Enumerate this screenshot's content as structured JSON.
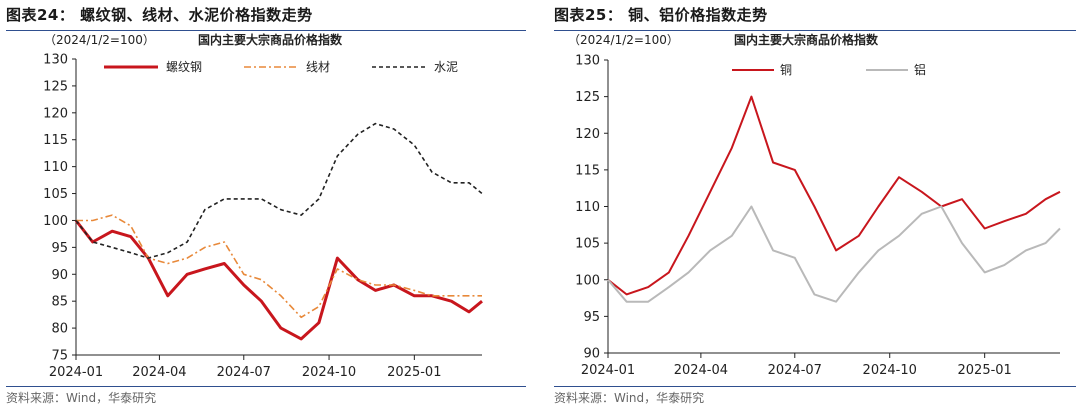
{
  "source_note": "资料来源：Wind，华泰研究",
  "chart_data": [
    {
      "type": "line",
      "figure_title": "图表24： 螺纹钢、线材、水泥价格指数走势",
      "title": "国内主要大宗商品价格指数",
      "base_note": "（2024/1/2=100）",
      "x_dates": [
        "2024-01-02",
        "2024-01-20",
        "2024-02-10",
        "2024-03-01",
        "2024-03-20",
        "2024-04-10",
        "2024-05-01",
        "2024-05-20",
        "2024-06-10",
        "2024-07-01",
        "2024-07-20",
        "2024-08-10",
        "2024-09-01",
        "2024-09-20",
        "2024-10-10",
        "2024-11-01",
        "2024-11-20",
        "2024-12-10",
        "2025-01-01",
        "2025-01-20",
        "2025-02-10",
        "2025-03-01",
        "2025-03-15"
      ],
      "series": [
        {
          "name": "螺纹钢",
          "color": "#c8161d",
          "dash": "none",
          "width": 3,
          "values": [
            100,
            96,
            98,
            97,
            93,
            86,
            90,
            91,
            92,
            88,
            85,
            80,
            78,
            81,
            93,
            89,
            87,
            88,
            86,
            86,
            85,
            83,
            85
          ]
        },
        {
          "name": "线材",
          "color": "#e8893a",
          "dash": "7,3,2,3",
          "width": 1.6,
          "values": [
            100,
            100,
            101,
            99,
            93,
            92,
            93,
            95,
            96,
            90,
            89,
            86,
            82,
            84,
            91,
            89,
            88,
            88,
            87,
            86,
            86,
            86,
            86
          ]
        },
        {
          "name": "水泥",
          "color": "#222222",
          "dash": "4,3",
          "width": 1.6,
          "values": [
            100,
            96,
            95,
            94,
            93,
            94,
            96,
            102,
            104,
            104,
            104,
            102,
            101,
            104,
            112,
            116,
            118,
            117,
            114,
            109,
            107,
            107,
            105
          ]
        }
      ],
      "x_ticks": [
        "2024-01",
        "2024-04",
        "2024-07",
        "2024-10",
        "2025-01"
      ],
      "x_tick_dates": [
        "2024-01-02",
        "2024-04-01",
        "2024-07-01",
        "2024-10-01",
        "2025-01-01"
      ],
      "y_ticks": [
        75,
        80,
        85,
        90,
        95,
        100,
        105,
        110,
        115,
        120,
        125,
        130
      ],
      "ylim": [
        75,
        130
      ],
      "legend_position": "top"
    },
    {
      "type": "line",
      "figure_title": "图表25： 铜、铝价格指数走势",
      "title": "国内主要大宗商品价格指数",
      "base_note": "（2024/1/2=100）",
      "x_dates": [
        "2024-01-02",
        "2024-01-20",
        "2024-02-10",
        "2024-03-01",
        "2024-03-20",
        "2024-04-10",
        "2024-05-01",
        "2024-05-20",
        "2024-06-10",
        "2024-07-01",
        "2024-07-20",
        "2024-08-10",
        "2024-09-01",
        "2024-09-20",
        "2024-10-10",
        "2024-11-01",
        "2024-11-20",
        "2024-12-10",
        "2025-01-01",
        "2025-01-20",
        "2025-02-10",
        "2025-03-01",
        "2025-03-15"
      ],
      "series": [
        {
          "name": "铜",
          "color": "#c8161d",
          "dash": "none",
          "width": 2,
          "values": [
            100,
            98,
            99,
            101,
            106,
            112,
            118,
            125,
            116,
            115,
            110,
            104,
            106,
            110,
            114,
            112,
            110,
            111,
            107,
            108,
            109,
            111,
            112
          ]
        },
        {
          "name": "铝",
          "color": "#b9b9b9",
          "dash": "none",
          "width": 2,
          "values": [
            100,
            97,
            97,
            99,
            101,
            104,
            106,
            110,
            104,
            103,
            98,
            97,
            101,
            104,
            106,
            109,
            110,
            105,
            101,
            102,
            104,
            105,
            107
          ]
        }
      ],
      "x_ticks": [
        "2024-01",
        "2024-04",
        "2024-07",
        "2024-10",
        "2025-01"
      ],
      "x_tick_dates": [
        "2024-01-02",
        "2024-04-01",
        "2024-07-01",
        "2024-10-01",
        "2025-01-01"
      ],
      "y_ticks": [
        90,
        95,
        100,
        105,
        110,
        115,
        120,
        125,
        130
      ],
      "ylim": [
        90,
        130
      ],
      "legend_position": "top-left"
    }
  ]
}
